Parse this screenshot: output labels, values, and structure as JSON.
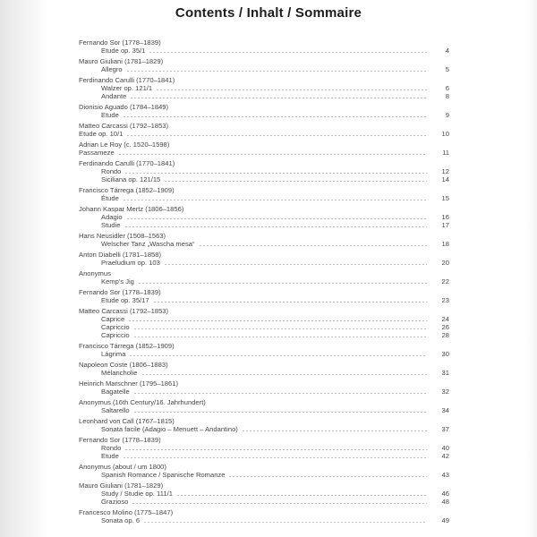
{
  "page": {
    "title": "Contents / Inhalt / Sommaire"
  },
  "toc": {
    "groups": [
      {
        "composer": "Fernando Sor (1778–1839)",
        "items": [
          {
            "title": "Etude op. 35/1",
            "page": "4"
          }
        ]
      },
      {
        "composer": "Mauro Giuliani (1781–1829)",
        "items": [
          {
            "title": "Allegro",
            "page": "5"
          }
        ]
      },
      {
        "composer": "Ferdinando Carulli (1770–1841)",
        "items": [
          {
            "title": "Walzer op. 121/1",
            "page": "6"
          },
          {
            "title": "Andante",
            "page": "8"
          }
        ]
      },
      {
        "composer": "Dionisio Aguado (1784–1849)",
        "items": [
          {
            "title": "Etude",
            "page": "9"
          }
        ]
      },
      {
        "composer": "Matteo Carcassi (1792–1853)",
        "items": [
          {
            "title": "Etude op. 10/1",
            "page": "10",
            "flush": true
          }
        ]
      },
      {
        "composer": "Adrian Le Roy (c. 1520–1598)",
        "items": [
          {
            "title": "Passameze",
            "page": "11",
            "flush": true
          }
        ]
      },
      {
        "composer": "Ferdinando Carulli (1770–1841)",
        "items": [
          {
            "title": "Rondo",
            "page": "12"
          },
          {
            "title": "Siciliana op. 121/15",
            "page": "14"
          }
        ]
      },
      {
        "composer": "Francisco Tárrega (1852–1909)",
        "items": [
          {
            "title": "Étude",
            "page": "15"
          }
        ]
      },
      {
        "composer": "Johann Kaspar Mertz (1806–1856)",
        "items": [
          {
            "title": "Adagio",
            "page": "16"
          },
          {
            "title": "Studie",
            "page": "17"
          }
        ]
      },
      {
        "composer": "Hans Neusidler (1508–1563)",
        "items": [
          {
            "title": "Welscher Tanz „Wascha mesa“",
            "page": "18"
          }
        ]
      },
      {
        "composer": "Anton Diabelli (1781–1858)",
        "items": [
          {
            "title": "Praeludium op. 103",
            "page": "20"
          }
        ]
      },
      {
        "composer": "Anonymus",
        "items": [
          {
            "title": "Kemp's Jig",
            "page": "22"
          }
        ]
      },
      {
        "composer": "Fernando Sor (1778–1839)",
        "items": [
          {
            "title": "Etude op. 35/17",
            "page": "23"
          }
        ]
      },
      {
        "composer": "Matteo Carcassi (1792–1853)",
        "items": [
          {
            "title": "Caprice",
            "page": "24"
          },
          {
            "title": "Capriccio",
            "page": "26"
          },
          {
            "title": "Capriccio",
            "page": "28"
          }
        ]
      },
      {
        "composer": "Francisco Tárrega (1852–1909)",
        "items": [
          {
            "title": "Lágrima",
            "page": "30"
          }
        ]
      },
      {
        "composer": "Napoleon Coste (1806–1883)",
        "items": [
          {
            "title": "Mélancholie",
            "page": "31"
          }
        ]
      },
      {
        "composer": "Heinrich Marschner (1795–1861)",
        "items": [
          {
            "title": "Bagatelle",
            "page": "32"
          }
        ]
      },
      {
        "composer": "Anonymus (16th Century/16. Jahrhundert)",
        "items": [
          {
            "title": "Saltarello",
            "page": "34"
          }
        ]
      },
      {
        "composer": "Leonhard von Call (1767–1815)",
        "items": [
          {
            "title": "Sonata facile (Adagio – Menuett – Andantino)",
            "page": "37"
          }
        ]
      },
      {
        "composer": "Fernando Sor (1778–1839)",
        "items": [
          {
            "title": "Rondo",
            "page": "40"
          },
          {
            "title": "Etude",
            "page": "42"
          }
        ]
      },
      {
        "composer": "Anonymus (about / um 1800)",
        "items": [
          {
            "title": "Spanish Romance / Spanische Romanze",
            "page": "43"
          }
        ]
      },
      {
        "composer": "Mauro Giuliani (1781–1829)",
        "items": [
          {
            "title": "Study / Studie op. 111/1",
            "page": "46"
          },
          {
            "title": "Grazioso",
            "page": "48"
          }
        ]
      },
      {
        "composer": "Francesco Molino (1775–1847)",
        "items": [
          {
            "title": "Sonata op. 6",
            "page": "49"
          }
        ]
      }
    ]
  }
}
